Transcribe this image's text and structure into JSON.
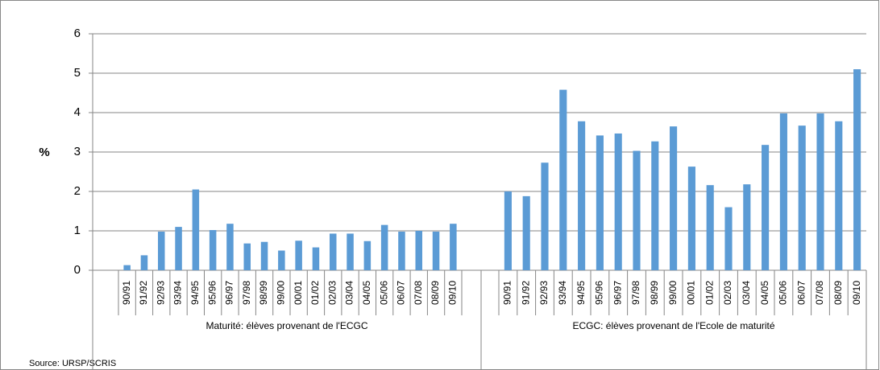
{
  "chart_data": {
    "type": "bar",
    "y_label": "%",
    "source": "Source: URSP/SCRIS",
    "color": "#5b9bd5",
    "ylim": [
      0,
      6
    ],
    "yticks": [
      0,
      1,
      2,
      3,
      4,
      5,
      6
    ],
    "grid": true,
    "groups": [
      {
        "label": "Maturité: élèves provenant de l'ECGC",
        "categories": [
          "90/91",
          "91/92",
          "92/93",
          "93/94",
          "94/95",
          "95/96",
          "96/97",
          "97/98",
          "98/99",
          "99/00",
          "00/01",
          "01/02",
          "02/03",
          "03/04",
          "04/05",
          "05/06",
          "06/07",
          "07/08",
          "08/09",
          "09/10"
        ],
        "values": [
          0.13,
          0.38,
          0.98,
          1.1,
          2.05,
          1.02,
          1.18,
          0.68,
          0.72,
          0.5,
          0.75,
          0.58,
          0.93,
          0.93,
          0.74,
          1.15,
          0.98,
          1.0,
          0.98,
          1.18
        ]
      },
      {
        "label": "ECGC: élèves provenant de l'Ecole de maturité",
        "categories": [
          "90/91",
          "91/92",
          "92/93",
          "93/94",
          "94/95",
          "95/96",
          "96/97",
          "97/98",
          "98/99",
          "99/00",
          "00/01",
          "01/02",
          "02/03",
          "03/04",
          "04/05",
          "05/06",
          "06/07",
          "07/08",
          "08/09",
          "09/10"
        ],
        "values": [
          2.0,
          1.88,
          2.73,
          4.58,
          3.78,
          3.42,
          3.47,
          3.03,
          3.27,
          3.65,
          2.63,
          2.16,
          1.6,
          2.18,
          3.18,
          3.98,
          3.67,
          3.98,
          3.78,
          5.1
        ]
      }
    ]
  }
}
